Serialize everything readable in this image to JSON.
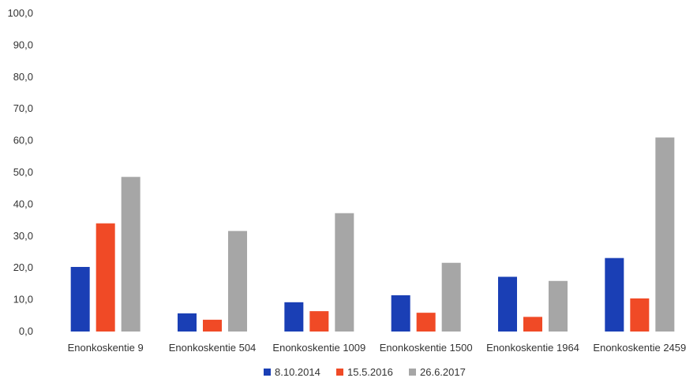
{
  "chart_data": {
    "type": "bar",
    "title": "",
    "xlabel": "",
    "ylabel": "",
    "ylim": [
      0,
      100
    ],
    "ytick_step": 10,
    "ytick_labels": [
      "0,0",
      "10,0",
      "20,0",
      "30,0",
      "40,0",
      "50,0",
      "60,0",
      "70,0",
      "80,0",
      "90,0",
      "100,0"
    ],
    "grid": false,
    "legend_position": "bottom",
    "categories": [
      "Enonkoskentie 9",
      "Enonkoskentie 504",
      "Enonkoskentie 1009",
      "Enonkoskentie 1500",
      "Enonkoskentie 1964",
      "Enonkoskentie 2459"
    ],
    "series": [
      {
        "name": "8.10.2014",
        "color": "#1a3fb5",
        "values": [
          20.3,
          5.7,
          9.2,
          11.4,
          17.2,
          23.1
        ]
      },
      {
        "name": "15.5.2016",
        "color": "#f04a26",
        "values": [
          34.0,
          3.7,
          6.4,
          5.9,
          4.6,
          10.4
        ]
      },
      {
        "name": "26.6.2017",
        "color": "#a6a6a6",
        "values": [
          48.6,
          31.6,
          37.2,
          21.6,
          15.9,
          61.0
        ]
      }
    ]
  }
}
